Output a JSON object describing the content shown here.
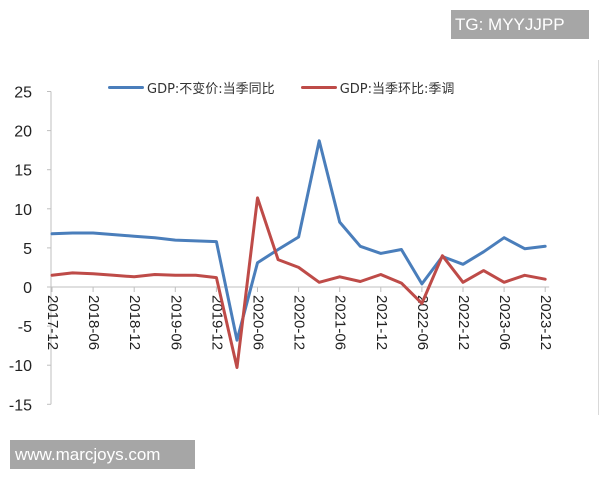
{
  "watermarks": {
    "top_right": "TG: MYYJJPP",
    "bottom_left": "www.marcjoys.com"
  },
  "colors": {
    "series_yoy": "#4a7ebb",
    "series_qoq": "#be4b48",
    "axis": "#bfbfbf",
    "text": "#222222"
  },
  "legend": [
    {
      "label": "GDP:不变价:当季同比",
      "color": "#4a7ebb"
    },
    {
      "label": "GDP:当季环比:季调",
      "color": "#be4b48"
    }
  ],
  "chart_data": {
    "type": "line",
    "title": "",
    "xlabel": "",
    "ylabel": "",
    "ylim": [
      -15,
      25
    ],
    "yticks": [
      25,
      20,
      15,
      10,
      5,
      0,
      -5,
      -10,
      -15
    ],
    "grid": false,
    "legend_position": "top",
    "x": [
      "2017-12",
      "2018-03",
      "2018-06",
      "2018-09",
      "2018-12",
      "2019-03",
      "2019-06",
      "2019-09",
      "2019-12",
      "2020-03",
      "2020-06",
      "2020-09",
      "2020-12",
      "2021-03",
      "2021-06",
      "2021-09",
      "2021-12",
      "2022-03",
      "2022-06",
      "2022-09",
      "2022-12",
      "2023-03",
      "2023-06",
      "2023-09",
      "2023-12"
    ],
    "xtick_labels": [
      "2017-12",
      "2018-06",
      "2018-12",
      "2019-06",
      "2019-12",
      "2020-06",
      "2020-12",
      "2021-06",
      "2021-12",
      "2022-06",
      "2022-12",
      "2023-06",
      "2023-12"
    ],
    "series": [
      {
        "name": "GDP:不变价:当季同比",
        "color": "#4a7ebb",
        "values": [
          6.8,
          6.9,
          6.9,
          6.7,
          6.5,
          6.3,
          6.0,
          5.9,
          5.8,
          -6.8,
          3.1,
          4.8,
          6.4,
          18.7,
          8.3,
          5.2,
          4.3,
          4.8,
          0.4,
          3.9,
          2.9,
          4.5,
          6.3,
          4.9,
          5.2
        ]
      },
      {
        "name": "GDP:当季环比:季调",
        "color": "#be4b48",
        "values": [
          1.5,
          1.8,
          1.7,
          1.5,
          1.3,
          1.6,
          1.5,
          1.5,
          1.2,
          -10.3,
          11.4,
          3.5,
          2.5,
          0.6,
          1.3,
          0.7,
          1.6,
          0.5,
          -2.1,
          4.0,
          0.6,
          2.1,
          0.6,
          1.5,
          1.0
        ]
      }
    ]
  }
}
